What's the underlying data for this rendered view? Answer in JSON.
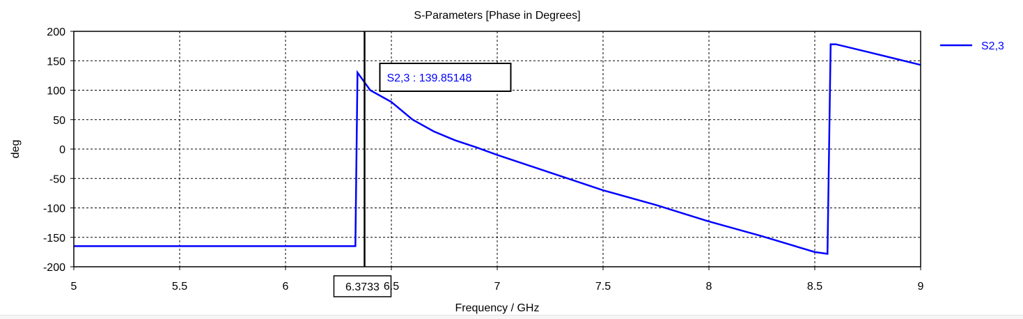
{
  "chart_data": {
    "type": "line",
    "title": "S-Parameters [Phase in Degrees]",
    "xlabel": "Frequency / GHz",
    "ylabel": "deg",
    "xlim": [
      5,
      9
    ],
    "ylim": [
      -200,
      200
    ],
    "x_ticks": [
      "5",
      "5.5",
      "6",
      "6.5",
      "7",
      "7.5",
      "8",
      "8.5",
      "9"
    ],
    "y_ticks": [
      "200",
      "150",
      "100",
      "50",
      "0",
      "-50",
      "-100",
      "-150",
      "-200"
    ],
    "grid": true,
    "legend_position": "right",
    "series": [
      {
        "name": "S2,3",
        "color": "#0000ff",
        "points": [
          [
            5.0,
            -165
          ],
          [
            6.33,
            -165
          ],
          [
            6.34,
            130
          ],
          [
            6.4,
            100
          ],
          [
            6.5,
            80
          ],
          [
            6.6,
            50
          ],
          [
            6.7,
            30
          ],
          [
            6.8,
            15
          ],
          [
            6.9,
            3
          ],
          [
            7.0,
            -10
          ],
          [
            7.25,
            -40
          ],
          [
            7.5,
            -70
          ],
          [
            7.75,
            -95
          ],
          [
            8.0,
            -123
          ],
          [
            8.25,
            -148
          ],
          [
            8.5,
            -175
          ],
          [
            8.56,
            -178
          ],
          [
            8.575,
            178
          ],
          [
            8.6,
            178
          ],
          [
            8.75,
            165
          ],
          [
            9.0,
            143
          ]
        ]
      }
    ],
    "marker": {
      "x_label": "6.3733",
      "x": 6.3733,
      "readout": "S2,3 : 139.85148"
    }
  },
  "colors": {
    "series": "#0000ff",
    "grid": "#000000",
    "axis": "#000000",
    "background": "#ffffff"
  }
}
